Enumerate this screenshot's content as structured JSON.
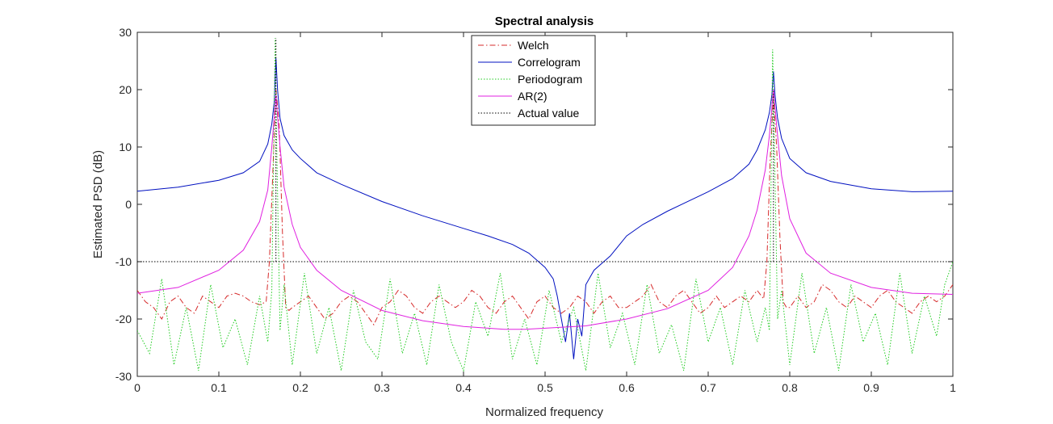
{
  "chart_data": {
    "type": "line",
    "title": "Spectral analysis",
    "xlabel": "Normalized frequency",
    "ylabel": "Estimated PSD (dB)",
    "xlim": [
      0,
      1
    ],
    "ylim": [
      -30,
      30
    ],
    "xticks": [
      0,
      0.1,
      0.2,
      0.3,
      0.4,
      0.5,
      0.6,
      0.7,
      0.8,
      0.9,
      1
    ],
    "xtick_labels": [
      "0",
      "0.1",
      "0.2",
      "0.3",
      "0.4",
      "0.5",
      "0.6",
      "0.7",
      "0.8",
      "0.9",
      "1"
    ],
    "yticks": [
      -30,
      -20,
      -10,
      0,
      10,
      20,
      30
    ],
    "ytick_labels": [
      "-30",
      "-20",
      "-10",
      "0",
      "10",
      "20",
      "30"
    ],
    "grid": false,
    "legend_position": "top-center",
    "series": [
      {
        "name": "Welch",
        "color": "#d62a2a",
        "style": "dashdot",
        "x": [
          0,
          0.01,
          0.02,
          0.03,
          0.04,
          0.05,
          0.06,
          0.07,
          0.08,
          0.09,
          0.1,
          0.11,
          0.12,
          0.13,
          0.14,
          0.15,
          0.158,
          0.162,
          0.166,
          0.17,
          0.174,
          0.178,
          0.182,
          0.186,
          0.19,
          0.2,
          0.21,
          0.22,
          0.23,
          0.24,
          0.25,
          0.26,
          0.27,
          0.28,
          0.29,
          0.3,
          0.31,
          0.32,
          0.33,
          0.34,
          0.35,
          0.36,
          0.37,
          0.38,
          0.39,
          0.4,
          0.41,
          0.42,
          0.43,
          0.44,
          0.45,
          0.46,
          0.47,
          0.48,
          0.49,
          0.5,
          0.51,
          0.52,
          0.53,
          0.54,
          0.55,
          0.56,
          0.57,
          0.58,
          0.59,
          0.6,
          0.61,
          0.62,
          0.63,
          0.64,
          0.65,
          0.66,
          0.67,
          0.68,
          0.69,
          0.7,
          0.71,
          0.72,
          0.73,
          0.74,
          0.75,
          0.76,
          0.768,
          0.772,
          0.776,
          0.78,
          0.784,
          0.788,
          0.792,
          0.796,
          0.8,
          0.81,
          0.82,
          0.83,
          0.84,
          0.85,
          0.86,
          0.87,
          0.88,
          0.89,
          0.9,
          0.91,
          0.92,
          0.93,
          0.94,
          0.95,
          0.96,
          0.97,
          0.98,
          0.99,
          1.0
        ],
        "y": [
          -15,
          -17,
          -18,
          -20,
          -17,
          -16,
          -18,
          -19,
          -16,
          -17,
          -18,
          -16,
          -15.5,
          -16,
          -17,
          -17.5,
          -17,
          -10,
          5,
          20,
          14,
          -5,
          -18,
          -18.5,
          -18,
          -17,
          -16,
          -18,
          -20,
          -19,
          -17,
          -16,
          -17,
          -19,
          -21,
          -18,
          -17,
          -15,
          -16,
          -18,
          -19,
          -17,
          -16,
          -17,
          -18,
          -17,
          -15,
          -16,
          -18,
          -19,
          -17,
          -16,
          -18,
          -20,
          -17,
          -16,
          -18,
          -19,
          -18,
          -16,
          -17,
          -19,
          -17,
          -16,
          -18,
          -18,
          -17,
          -16,
          -14,
          -17,
          -18,
          -16,
          -15,
          -17,
          -19,
          -18,
          -16,
          -18,
          -17,
          -16,
          -17,
          -15,
          -16.5,
          -10,
          8,
          19,
          10,
          -6,
          -17,
          -18,
          -18,
          -16,
          -18,
          -17,
          -14,
          -15,
          -17,
          -18,
          -16,
          -17,
          -18,
          -16,
          -15,
          -17,
          -18,
          -19,
          -17,
          -16,
          -17,
          -16,
          -14
        ]
      },
      {
        "name": "Correlogram",
        "color": "#0010c0",
        "style": "solid",
        "x": [
          0,
          0.05,
          0.1,
          0.13,
          0.15,
          0.16,
          0.165,
          0.168,
          0.17,
          0.172,
          0.175,
          0.18,
          0.19,
          0.2,
          0.22,
          0.25,
          0.3,
          0.35,
          0.4,
          0.43,
          0.46,
          0.48,
          0.5,
          0.51,
          0.515,
          0.52,
          0.525,
          0.53,
          0.535,
          0.54,
          0.545,
          0.55,
          0.56,
          0.58,
          0.6,
          0.62,
          0.65,
          0.7,
          0.73,
          0.75,
          0.76,
          0.77,
          0.775,
          0.778,
          0.78,
          0.782,
          0.785,
          0.79,
          0.8,
          0.82,
          0.85,
          0.9,
          0.95,
          1.0
        ],
        "y": [
          2.3,
          3.0,
          4.2,
          5.5,
          7.5,
          10.5,
          14,
          18,
          25.5,
          20,
          15,
          12,
          9.5,
          8,
          5.5,
          3.5,
          0.5,
          -2,
          -4.2,
          -5.5,
          -7,
          -8.5,
          -11,
          -13,
          -16,
          -20,
          -24,
          -19,
          -27,
          -20,
          -23,
          -14,
          -11.5,
          -9,
          -5.5,
          -3.5,
          -1.2,
          2.2,
          4.5,
          7,
          9.5,
          13,
          16,
          19,
          23.2,
          19,
          15,
          11.5,
          8,
          5.5,
          4,
          2.7,
          2.2,
          2.3
        ]
      },
      {
        "name": "Periodogram",
        "color": "#22cc22",
        "style": "dotted",
        "x": [
          0,
          0.015,
          0.03,
          0.045,
          0.06,
          0.075,
          0.09,
          0.105,
          0.12,
          0.135,
          0.15,
          0.16,
          0.165,
          0.169,
          0.171,
          0.175,
          0.18,
          0.19,
          0.205,
          0.22,
          0.235,
          0.25,
          0.265,
          0.28,
          0.295,
          0.31,
          0.325,
          0.34,
          0.355,
          0.37,
          0.385,
          0.4,
          0.415,
          0.43,
          0.445,
          0.46,
          0.475,
          0.49,
          0.505,
          0.52,
          0.535,
          0.55,
          0.565,
          0.58,
          0.595,
          0.61,
          0.625,
          0.64,
          0.655,
          0.67,
          0.685,
          0.7,
          0.715,
          0.73,
          0.745,
          0.76,
          0.77,
          0.775,
          0.779,
          0.781,
          0.785,
          0.79,
          0.8,
          0.815,
          0.83,
          0.845,
          0.86,
          0.875,
          0.89,
          0.905,
          0.92,
          0.935,
          0.95,
          0.965,
          0.98,
          0.99,
          1.0
        ],
        "y": [
          -22,
          -26,
          -13,
          -28,
          -18,
          -29,
          -14,
          -25,
          -20,
          -28,
          -16,
          -24,
          -15,
          29,
          10,
          -22,
          -14,
          -28,
          -12,
          -26,
          -18,
          -29,
          -15,
          -24,
          -27,
          -13,
          -26,
          -19,
          -28,
          -14,
          -24,
          -29,
          -17,
          -23,
          -12,
          -27,
          -20,
          -28,
          -15,
          -24,
          -18,
          -29,
          -12,
          -25,
          -19,
          -28,
          -14,
          -26,
          -21,
          -29,
          -13,
          -24,
          -18,
          -28,
          -15,
          -24,
          -18,
          -22,
          27,
          12,
          -20,
          -15,
          -28,
          -12,
          -26,
          -18,
          -29,
          -14,
          -24,
          -19,
          -28,
          -12,
          -26,
          -16,
          -23,
          -14,
          -10
        ]
      },
      {
        "name": "AR(2)",
        "color": "#e020e0",
        "style": "solid",
        "x": [
          0,
          0.05,
          0.1,
          0.13,
          0.15,
          0.16,
          0.165,
          0.17,
          0.175,
          0.18,
          0.19,
          0.2,
          0.22,
          0.25,
          0.3,
          0.35,
          0.4,
          0.45,
          0.475,
          0.5,
          0.55,
          0.6,
          0.65,
          0.7,
          0.73,
          0.75,
          0.76,
          0.77,
          0.775,
          0.78,
          0.785,
          0.79,
          0.8,
          0.82,
          0.85,
          0.9,
          0.95,
          1.0
        ],
        "y": [
          -15.5,
          -14.5,
          -11.5,
          -8,
          -3,
          2.5,
          10,
          19,
          10,
          3,
          -3.5,
          -7.5,
          -11.5,
          -15,
          -18.5,
          -20.3,
          -21.3,
          -21.8,
          -21.8,
          -21.6,
          -21.2,
          -20,
          -18.2,
          -15,
          -11,
          -5.5,
          -1,
          6,
          12,
          20,
          12,
          5,
          -2.5,
          -8.5,
          -12,
          -14.5,
          -15.5,
          -15.7
        ]
      },
      {
        "name": "Actual value",
        "color": "#000000",
        "style": "dotted",
        "segments": [
          {
            "x": [
              0,
              1
            ],
            "y": [
              -10,
              -10
            ]
          },
          {
            "x": [
              0.17,
              0.17
            ],
            "y": [
              -10,
              29
            ]
          },
          {
            "x": [
              0.78,
              0.78
            ],
            "y": [
              -10,
              20
            ]
          }
        ]
      }
    ]
  }
}
